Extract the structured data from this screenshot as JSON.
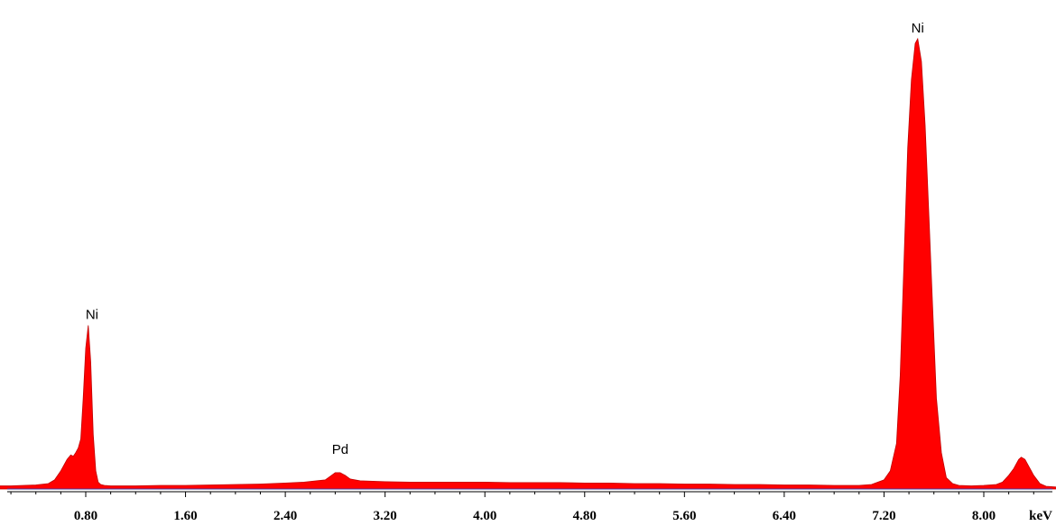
{
  "chart_data": {
    "type": "area",
    "title": "",
    "xlabel": "keV",
    "ylabel": "",
    "xlim": [
      -0.2,
      8.8
    ],
    "ylim": [
      0,
      1.0
    ],
    "x_ticks": [
      "0.80",
      "1.60",
      "2.40",
      "3.20",
      "4.00",
      "4.80",
      "5.60",
      "6.40",
      "7.20",
      "8.00"
    ],
    "x_tick_values": [
      0.8,
      1.6,
      2.4,
      3.2,
      4.0,
      4.8,
      5.6,
      6.4,
      7.2,
      8.0
    ],
    "unit_label": "keV",
    "fill_color": "#ff0000",
    "outline_color": "#c00000",
    "baseline_color": "#4a3aa0",
    "annotations": [
      {
        "text": "Ni",
        "x": 0.85,
        "y": 0.36
      },
      {
        "text": "Pd",
        "x": 2.84,
        "y": 0.063
      },
      {
        "text": "Ni",
        "x": 7.47,
        "y": 0.99
      }
    ],
    "series": [
      {
        "x": [
          -0.2,
          -0.1,
          0.0,
          0.1,
          0.2,
          0.3,
          0.4,
          0.5,
          0.55,
          0.6,
          0.65,
          0.68,
          0.7,
          0.72,
          0.74,
          0.76,
          0.78,
          0.8,
          0.82,
          0.84,
          0.86,
          0.88,
          0.9,
          0.92,
          0.95,
          1.0,
          1.1,
          1.2,
          1.4,
          1.6,
          1.8,
          2.0,
          2.2,
          2.4,
          2.55,
          2.65,
          2.72,
          2.76,
          2.8,
          2.84,
          2.88,
          2.92,
          2.96,
          3.0,
          3.1,
          3.2,
          3.4,
          3.6,
          3.8,
          4.0,
          4.2,
          4.4,
          4.6,
          4.8,
          5.0,
          5.2,
          5.4,
          5.6,
          5.8,
          6.0,
          6.2,
          6.4,
          6.6,
          6.8,
          7.0,
          7.1,
          7.2,
          7.25,
          7.3,
          7.33,
          7.36,
          7.39,
          7.42,
          7.45,
          7.47,
          7.5,
          7.53,
          7.56,
          7.59,
          7.62,
          7.66,
          7.7,
          7.75,
          7.8,
          7.9,
          8.0,
          8.1,
          8.15,
          8.2,
          8.24,
          8.26,
          8.28,
          8.3,
          8.33,
          8.36,
          8.4,
          8.45,
          8.5,
          8.6,
          8.7,
          8.8
        ],
        "y": [
          0.004,
          0.006,
          0.006,
          0.007,
          0.007,
          0.008,
          0.009,
          0.012,
          0.02,
          0.04,
          0.065,
          0.075,
          0.072,
          0.08,
          0.09,
          0.11,
          0.2,
          0.31,
          0.36,
          0.28,
          0.12,
          0.04,
          0.015,
          0.01,
          0.008,
          0.007,
          0.007,
          0.007,
          0.008,
          0.008,
          0.009,
          0.01,
          0.011,
          0.013,
          0.015,
          0.018,
          0.02,
          0.028,
          0.036,
          0.036,
          0.03,
          0.022,
          0.02,
          0.018,
          0.017,
          0.016,
          0.015,
          0.015,
          0.015,
          0.015,
          0.014,
          0.014,
          0.014,
          0.013,
          0.013,
          0.012,
          0.012,
          0.011,
          0.011,
          0.01,
          0.01,
          0.009,
          0.009,
          0.008,
          0.008,
          0.01,
          0.02,
          0.04,
          0.1,
          0.25,
          0.5,
          0.75,
          0.9,
          0.98,
          0.99,
          0.94,
          0.8,
          0.6,
          0.4,
          0.2,
          0.08,
          0.025,
          0.012,
          0.008,
          0.007,
          0.008,
          0.01,
          0.015,
          0.03,
          0.045,
          0.055,
          0.065,
          0.07,
          0.065,
          0.05,
          0.03,
          0.012,
          0.006,
          0.004,
          0.003,
          0.003
        ]
      }
    ]
  }
}
